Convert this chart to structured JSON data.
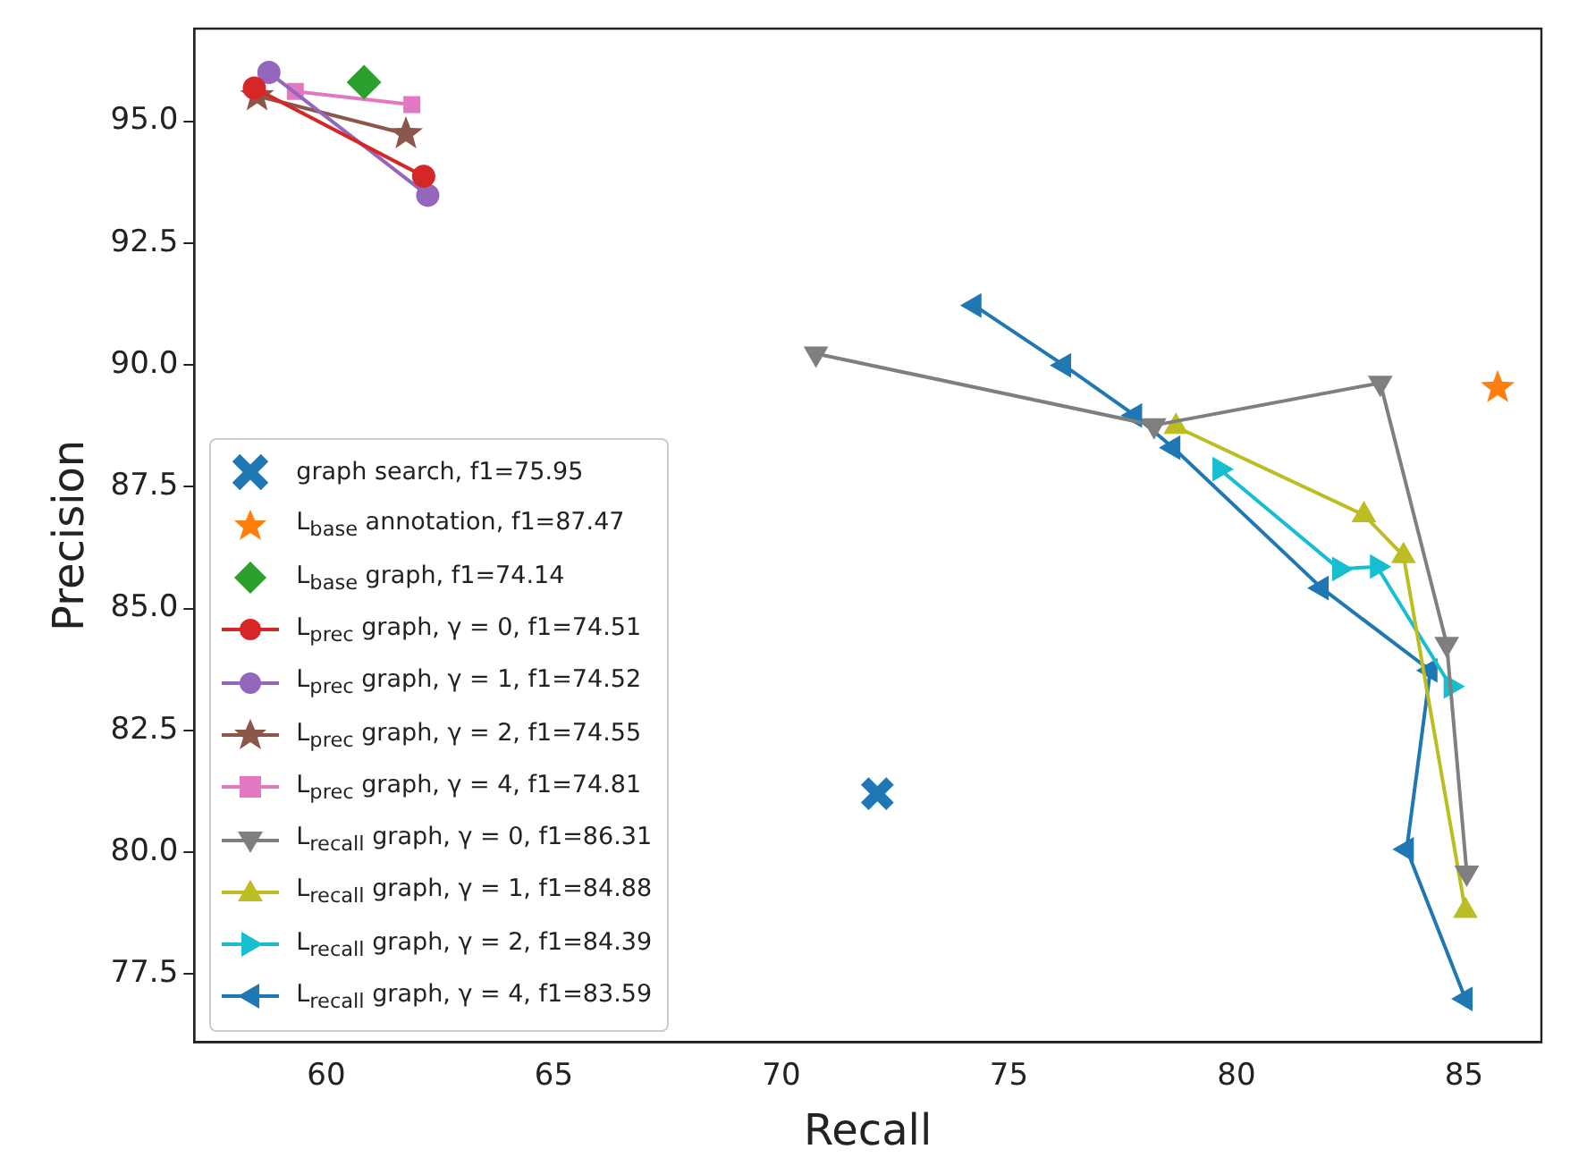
{
  "chart_data": {
    "type": "scatter",
    "xlabel": "Recall",
    "ylabel": "Precision",
    "xlim": [
      57.1,
      86.7
    ],
    "xticks": [
      60,
      65,
      70,
      75,
      80,
      85
    ],
    "ylim": [
      76.1,
      96.9
    ],
    "yticks": [
      {
        "value": 77.5,
        "label": "77.5"
      },
      {
        "value": 80,
        "label": "80.0"
      },
      {
        "value": 82.5,
        "label": "82.5"
      },
      {
        "value": 85,
        "label": "85.0"
      },
      {
        "value": 87.5,
        "label": "87.5"
      },
      {
        "value": 90,
        "label": "90.0"
      },
      {
        "value": 92.5,
        "label": "92.5"
      },
      {
        "value": 95,
        "label": "95.0"
      }
    ],
    "grid": false,
    "legend": "bottom left",
    "series": [
      {
        "name": "graph search, f1=75.95",
        "type": "scatter",
        "marker": "cross",
        "color": "#1f77b4",
        "x": [
          72.11
        ],
        "values": [
          81.2
        ]
      },
      {
        "name": "L$_{base}$ annotation, f1=87.47",
        "type": "scatter",
        "marker": "star",
        "color": "#ff7f0e",
        "x": [
          85.74
        ],
        "values": [
          89.53
        ]
      },
      {
        "name": "L$_{base}$ graph, f1=74.14",
        "type": "scatter",
        "marker": "diamond",
        "color": "#2ca02c",
        "x": [
          60.83
        ],
        "values": [
          95.8
        ]
      },
      {
        "name": "L$_{prec}$ graph, γ = 0, f1=74.51",
        "type": "line",
        "marker": "circle",
        "color": "#d62728",
        "x": [
          58.42,
          62.14
        ],
        "values": [
          95.68,
          93.87
        ]
      },
      {
        "name": "L$_{prec}$ graph, γ = 1, f1=74.52",
        "type": "line",
        "marker": "circle",
        "color": "#9467bd",
        "x": [
          58.74,
          62.23
        ],
        "values": [
          96.0,
          93.48
        ]
      },
      {
        "name": "L$_{prec}$ graph, γ = 2, f1=74.55",
        "type": "line",
        "marker": "star",
        "color": "#8c564b",
        "x": [
          58.48,
          61.75
        ],
        "values": [
          95.52,
          94.74
        ]
      },
      {
        "name": "L$_{prec}$ graph, γ = 4, f1=74.81",
        "type": "line",
        "marker": "square",
        "color": "#e377c2",
        "x": [
          59.32,
          61.88
        ],
        "values": [
          95.61,
          95.34
        ]
      },
      {
        "name": "L$_{recall}$ graph, γ = 0, f1=86.31",
        "type": "line",
        "marker": "triangle-down",
        "color": "#7f7f7f",
        "x": [
          70.76,
          78.19,
          83.16,
          84.62,
          85.06
        ],
        "values": [
          90.23,
          88.76,
          89.63,
          84.27,
          79.58
        ]
      },
      {
        "name": "L$_{recall}$ graph, γ = 1, f1=84.88",
        "type": "line",
        "marker": "triangle",
        "color": "#bcbd22",
        "x": [
          78.67,
          82.8,
          83.67,
          85.03
        ],
        "values": [
          88.73,
          86.92,
          86.08,
          78.8
        ]
      },
      {
        "name": "L$_{recall}$ graph, γ = 2, f1=84.39",
        "type": "line",
        "marker": "triangle-right",
        "color": "#17becf",
        "x": [
          79.63,
          82.26,
          83.09,
          84.71
        ],
        "values": [
          87.86,
          85.81,
          85.86,
          83.4
        ]
      },
      {
        "name": "L$_{recall}$ graph, γ = 4, f1=83.59",
        "type": "line",
        "marker": "triangle-left",
        "color": "#1f77b4",
        "x": [
          74.24,
          76.21,
          77.77,
          78.61,
          81.87,
          84.26,
          83.74,
          85.03
        ],
        "values": [
          91.22,
          89.99,
          88.96,
          88.3,
          85.42,
          83.73,
          80.06,
          76.99
        ]
      }
    ]
  }
}
